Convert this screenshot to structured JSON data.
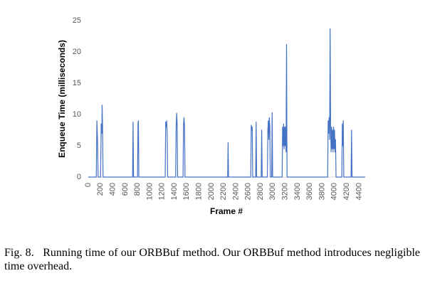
{
  "chart_data": {
    "type": "line",
    "xlabel": "Frame #",
    "ylabel": "Enqueue Time (milliseconds)",
    "xlim": [
      0,
      4500
    ],
    "xticks": [
      0,
      200,
      400,
      600,
      800,
      1000,
      1200,
      1400,
      1600,
      1800,
      2000,
      2200,
      2400,
      2600,
      2800,
      3000,
      3200,
      3400,
      3600,
      3800,
      4000,
      4200,
      4400
    ],
    "ylim": [
      0,
      25
    ],
    "yticks": [
      0,
      5,
      10,
      15,
      20,
      25
    ],
    "grid": false,
    "x": [
      0,
      130,
      140,
      150,
      160,
      200,
      210,
      220,
      225,
      232,
      240,
      720,
      728,
      736,
      800,
      808,
      815,
      822,
      1250,
      1258,
      1266,
      1274,
      1282,
      1290,
      1420,
      1428,
      1436,
      1444,
      1452,
      1540,
      1548,
      1556,
      1564,
      1572,
      2265,
      2272,
      2279,
      2640,
      2648,
      2656,
      2664,
      2672,
      2720,
      2728,
      2736,
      2810,
      2818,
      2826,
      2910,
      2918,
      2926,
      2934,
      2942,
      2950,
      2958,
      2980,
      2988,
      2996,
      3150,
      3158,
      3166,
      3174,
      3182,
      3190,
      3198,
      3206,
      3214,
      3222,
      3230,
      3890,
      3898,
      3906,
      3914,
      3922,
      3930,
      3938,
      3946,
      3954,
      3962,
      3970,
      3978,
      3986,
      3994,
      4002,
      4010,
      4018,
      4026,
      4120,
      4128,
      4136,
      4144,
      4152,
      4270,
      4278,
      4286,
      4500
    ],
    "series": [
      {
        "color": "#4472c4",
        "values": [
          0,
          0,
          9,
          6,
          0,
          0,
          8.5,
          7,
          11.5,
          8,
          0,
          0,
          8.8,
          0,
          0,
          8.5,
          9,
          0,
          0,
          8.8,
          8,
          9,
          7,
          0,
          0,
          8,
          10.2,
          8.5,
          0,
          0,
          8.5,
          9.5,
          8,
          0,
          0,
          5.5,
          0,
          0,
          8.3,
          7.5,
          8,
          0,
          0,
          8.8,
          0,
          0,
          7.5,
          0,
          0,
          7.5,
          9,
          6,
          9.5,
          8,
          0,
          0,
          10.3,
          0,
          0,
          8,
          5,
          8.5,
          4.5,
          8,
          5,
          8,
          4,
          21.2,
          0,
          0,
          9,
          7,
          9.5,
          6,
          23.7,
          8,
          4,
          8,
          4.5,
          7.5,
          4,
          8,
          4.5,
          7.5,
          4,
          6,
          0,
          0,
          8.5,
          5,
          9,
          0,
          0,
          7.5,
          0,
          0
        ]
      }
    ]
  },
  "caption": "Fig. 8.   Running time of our ORBBuf method. Our ORBBuf method introduces negligible time overhead."
}
